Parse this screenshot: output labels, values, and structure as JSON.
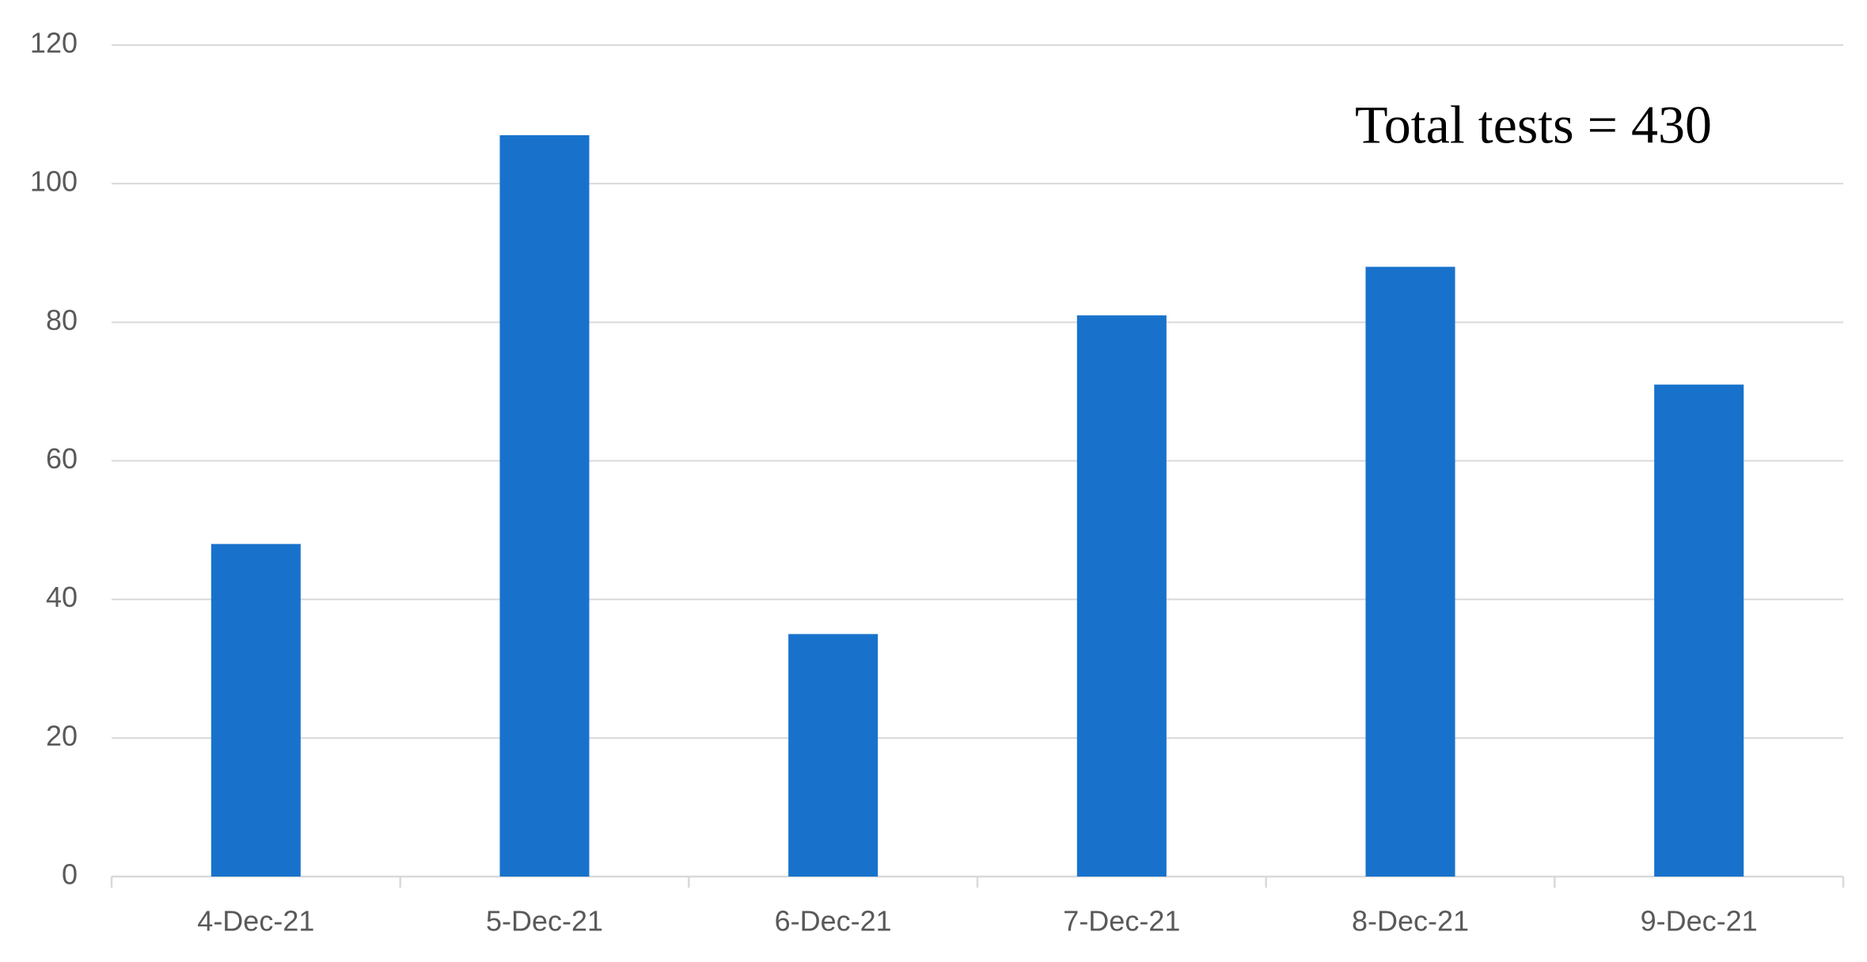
{
  "chart_data": {
    "type": "bar",
    "annotation": "Total tests = 430",
    "categories": [
      "4-Dec-21",
      "5-Dec-21",
      "6-Dec-21",
      "7-Dec-21",
      "8-Dec-21",
      "9-Dec-21"
    ],
    "values": [
      48,
      107,
      35,
      81,
      88,
      71
    ],
    "color": "#1872cc",
    "ylim": [
      0,
      120
    ],
    "yticks": [
      0,
      20,
      40,
      60,
      80,
      100,
      120
    ],
    "grid": true
  }
}
